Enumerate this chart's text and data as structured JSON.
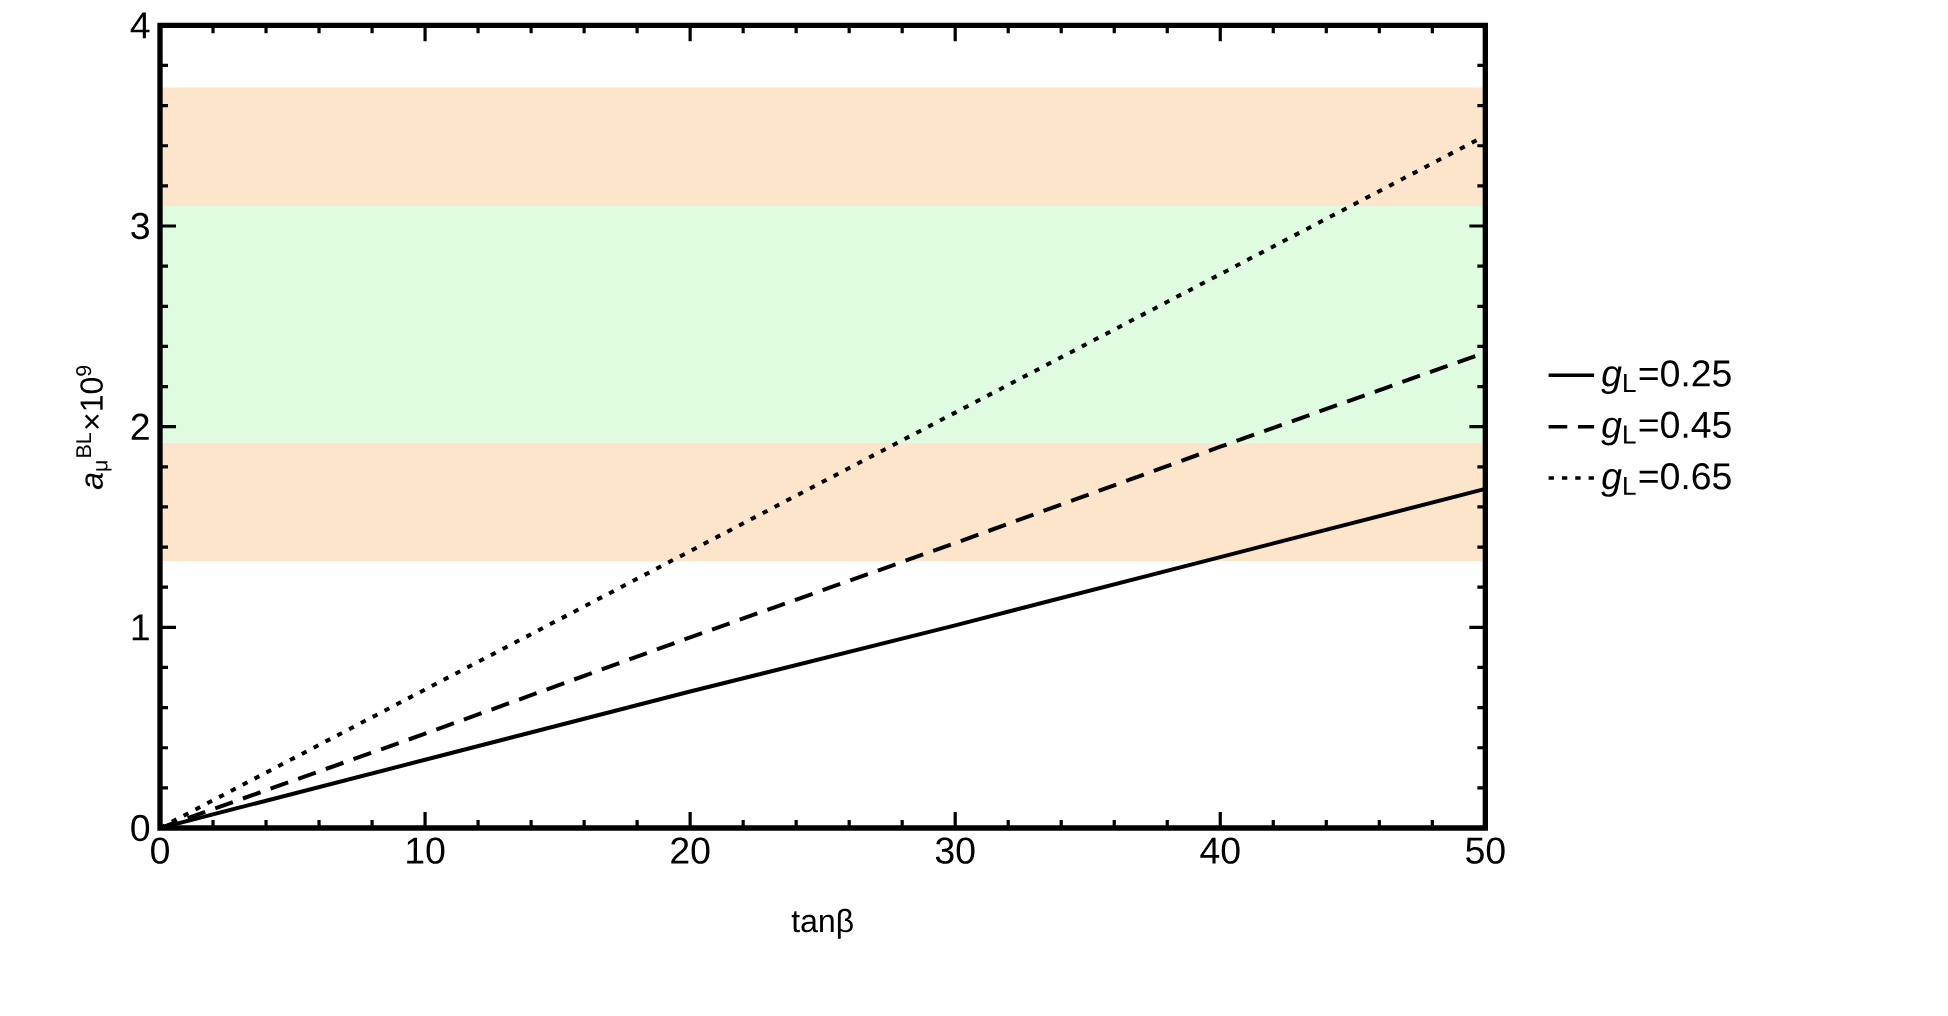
{
  "chart_data": {
    "type": "line",
    "xlabel": "tanβ",
    "ylabel": "*a*$_{μ}$$^{BL}$×10$^{9}$",
    "x": [
      0,
      10,
      20,
      30,
      40,
      50
    ],
    "series": [
      {
        "name": "*g*$_{L}$=0.25",
        "color": "#000000",
        "line_style": "solid",
        "values": [
          0,
          0.34,
          0.68,
          1.01,
          1.35,
          1.69
        ]
      },
      {
        "name": "*g*$_{L}$=0.45",
        "color": "#000000",
        "line_style": "dashed",
        "values": [
          0,
          0.47,
          0.95,
          1.42,
          1.9,
          2.37
        ]
      },
      {
        "name": "*g*$_{L}$=0.65",
        "color": "#000000",
        "line_style": "dotted",
        "values": [
          0,
          0.69,
          1.38,
          2.07,
          2.76,
          3.45
        ]
      }
    ],
    "bands": [
      {
        "axis": "y",
        "from": 1.33,
        "to": 1.92,
        "color": "#fde5cc"
      },
      {
        "axis": "y",
        "from": 1.92,
        "to": 3.1,
        "color": "#e0fce0"
      },
      {
        "axis": "y",
        "from": 3.1,
        "to": 3.69,
        "color": "#fde5cc"
      }
    ],
    "xlim": [
      0,
      50
    ],
    "ylim": [
      0,
      4
    ],
    "xticks": [
      0,
      10,
      20,
      30,
      40,
      50
    ],
    "yticks": [
      0,
      1,
      2,
      3,
      4
    ],
    "grid": false,
    "legend": "right",
    "marker": "none"
  }
}
